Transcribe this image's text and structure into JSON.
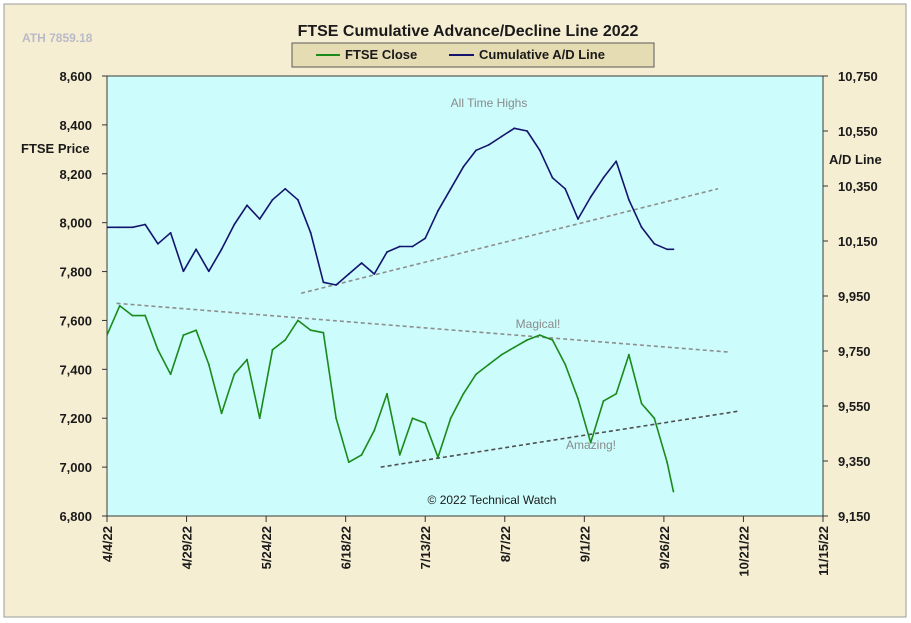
{
  "title": "FTSE Cumulative  Advance/Decline Line 2022",
  "ath_label": "ATH 7859.18",
  "copyright": "© 2022 Technical Watch",
  "colors": {
    "frame": "#f6eed2",
    "plot_bg": "#ccfcfc",
    "ftse_line": "#1a8a1a",
    "ad_line": "#14146e",
    "trend_grey": "#8e8e8e",
    "trend_dark": "#505050",
    "legend_bg": "#e6dcb4"
  },
  "chart_data": {
    "type": "line",
    "title": "FTSE Cumulative  Advance/Decline Line 2022",
    "ylabel_left": "FTSE Price",
    "ylabel_right": "A/D Line",
    "ylim_left": [
      6800,
      8600
    ],
    "ylim_right": [
      9150,
      10750
    ],
    "y_ticks_left": [
      "8,600",
      "8,400",
      "8,200",
      "8,000",
      "7,800",
      "7,600",
      "7,400",
      "7,200",
      "7,000",
      "6,800"
    ],
    "y_ticks_right": [
      "10,750",
      "10,550",
      "10,350",
      "10,150",
      "9,950",
      "9,750",
      "9,550",
      "9,350",
      "9,150"
    ],
    "x_ticks": [
      "4/4/22",
      "4/29/22",
      "5/24/22",
      "6/18/22",
      "7/13/22",
      "8/7/22",
      "9/1/22",
      "9/26/22",
      "10/21/22",
      "11/15/22"
    ],
    "x_range": [
      "2022-04-04",
      "2022-11-15"
    ],
    "grid": false,
    "legend_position": "top-center",
    "annotations": [
      "All Time Highs",
      "Magical!",
      "Amazing!"
    ],
    "series": [
      {
        "name": "FTSE Close",
        "x": [
          "2022-04-04",
          "2022-04-08",
          "2022-04-12",
          "2022-04-16",
          "2022-04-20",
          "2022-04-24",
          "2022-04-28",
          "2022-05-02",
          "2022-05-06",
          "2022-05-10",
          "2022-05-14",
          "2022-05-18",
          "2022-05-22",
          "2022-05-26",
          "2022-05-30",
          "2022-06-03",
          "2022-06-07",
          "2022-06-11",
          "2022-06-15",
          "2022-06-19",
          "2022-06-23",
          "2022-06-27",
          "2022-07-01",
          "2022-07-05",
          "2022-07-09",
          "2022-07-13",
          "2022-07-17",
          "2022-07-21",
          "2022-07-25",
          "2022-07-29",
          "2022-08-02",
          "2022-08-06",
          "2022-08-10",
          "2022-08-14",
          "2022-08-18",
          "2022-08-22",
          "2022-08-26",
          "2022-08-30",
          "2022-09-03",
          "2022-09-07",
          "2022-09-11",
          "2022-09-15",
          "2022-09-19",
          "2022-09-23",
          "2022-09-27",
          "2022-09-29"
        ],
        "values": [
          7540,
          7660,
          7620,
          7620,
          7480,
          7380,
          7540,
          7560,
          7420,
          7220,
          7380,
          7440,
          7200,
          7480,
          7520,
          7600,
          7560,
          7550,
          7200,
          7020,
          7050,
          7150,
          7300,
          7050,
          7200,
          7180,
          7040,
          7200,
          7300,
          7380,
          7420,
          7460,
          7490,
          7520,
          7540,
          7520,
          7420,
          7280,
          7100,
          7270,
          7300,
          7460,
          7260,
          7200,
          7020,
          6900
        ]
      },
      {
        "name": "Cumulative A/D Line",
        "x": [
          "2022-04-04",
          "2022-04-08",
          "2022-04-12",
          "2022-04-16",
          "2022-04-20",
          "2022-04-24",
          "2022-04-28",
          "2022-05-02",
          "2022-05-06",
          "2022-05-10",
          "2022-05-14",
          "2022-05-18",
          "2022-05-22",
          "2022-05-26",
          "2022-05-30",
          "2022-06-03",
          "2022-06-07",
          "2022-06-11",
          "2022-06-15",
          "2022-06-19",
          "2022-06-23",
          "2022-06-27",
          "2022-07-01",
          "2022-07-05",
          "2022-07-09",
          "2022-07-13",
          "2022-07-17",
          "2022-07-21",
          "2022-07-25",
          "2022-07-29",
          "2022-08-02",
          "2022-08-06",
          "2022-08-10",
          "2022-08-14",
          "2022-08-18",
          "2022-08-22",
          "2022-08-26",
          "2022-08-30",
          "2022-09-03",
          "2022-09-07",
          "2022-09-11",
          "2022-09-15",
          "2022-09-19",
          "2022-09-23",
          "2022-09-27",
          "2022-09-29"
        ],
        "values": [
          10200,
          10200,
          10200,
          10210,
          10140,
          10180,
          10040,
          10120,
          10040,
          10120,
          10210,
          10280,
          10230,
          10300,
          10340,
          10300,
          10180,
          10000,
          9990,
          10030,
          10070,
          10030,
          10110,
          10130,
          10130,
          10160,
          10260,
          10340,
          10420,
          10480,
          10500,
          10530,
          10560,
          10550,
          10480,
          10380,
          10340,
          10230,
          10310,
          10380,
          10440,
          10300,
          10200,
          10140,
          10120,
          10120
        ]
      }
    ],
    "trendlines": [
      {
        "label": "A/D rising trend",
        "from": [
          "2022-06-04",
          9960
        ],
        "to": [
          "2022-10-13",
          10340
        ]
      },
      {
        "label": "Magical! falling trend",
        "from": [
          "2022-04-07",
          7670
        ],
        "to": [
          "2022-10-17",
          7470
        ]
      },
      {
        "label": "Amazing! rising trend",
        "from": [
          "2022-06-29",
          7000
        ],
        "to": [
          "2022-10-20",
          7230
        ]
      }
    ]
  }
}
